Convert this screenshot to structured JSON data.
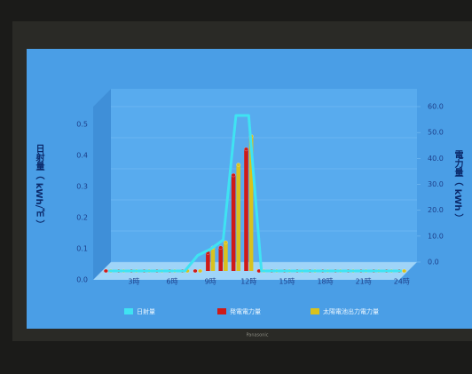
{
  "chart_data": {
    "type": "bar",
    "y_axis_label": "日射量（ kWh/㎡ ）",
    "y2_axis_label": "電力量（ kWh ）",
    "categories": [
      null,
      null,
      "3時",
      null,
      null,
      "6時",
      null,
      null,
      "9時",
      null,
      null,
      "12時",
      null,
      null,
      "15時",
      null,
      null,
      "18時",
      null,
      null,
      "21時",
      null,
      null,
      "24時"
    ],
    "series": [
      {
        "name": "日射量",
        "color": "#3fe3f2",
        "axis": "y",
        "kind": "line",
        "values": [
          0,
          0,
          0,
          0,
          0,
          0,
          0,
          0.05,
          0.07,
          0.1,
          0.5,
          0.5,
          0,
          0,
          0,
          0,
          0,
          0,
          0,
          0,
          0,
          0,
          0,
          0
        ]
      },
      {
        "name": "発電電力量",
        "color": "#cf1a18",
        "axis": "y2",
        "kind": "bar",
        "values": [
          0,
          0,
          0,
          0,
          0,
          0,
          0,
          0,
          7,
          9,
          37,
          47,
          0,
          0,
          0,
          0,
          0,
          0,
          0,
          0,
          0,
          0,
          0,
          0
        ]
      },
      {
        "name": "太陽電池出力電力量",
        "color": "#d9c21e",
        "axis": "y2",
        "kind": "bar",
        "values": [
          0,
          0,
          0,
          0,
          0,
          0,
          0,
          0,
          9,
          11,
          41,
          52,
          0,
          0,
          0,
          0,
          0,
          0,
          0,
          0,
          0,
          0,
          0,
          0
        ]
      }
    ],
    "ylim": [
      0,
      0.5
    ],
    "yticks": [
      {
        "value": 0,
        "label": "0.0"
      },
      0.1,
      0.2,
      0.3,
      0.4,
      0.5
    ],
    "y2lim": [
      0,
      60
    ],
    "y2ticks": [
      {
        "value": 0,
        "label": "0.0"
      },
      {
        "value": 10,
        "label": "10.0"
      },
      {
        "value": 20,
        "label": "20.0"
      },
      {
        "value": 30,
        "label": "30.0"
      },
      {
        "value": 40,
        "label": "40.0"
      },
      {
        "value": 50,
        "label": "50.0"
      },
      {
        "value": 60,
        "label": "60.0"
      }
    ],
    "grid": true
  },
  "bezel_text": "Panasonic"
}
